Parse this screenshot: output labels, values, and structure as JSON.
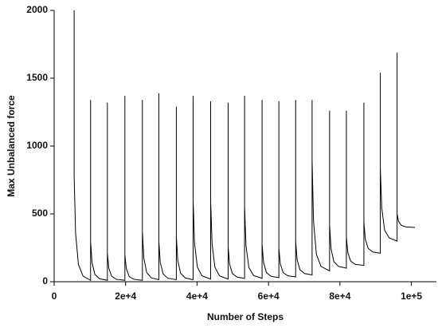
{
  "chart_data": {
    "type": "line",
    "xlabel": "Number of Steps",
    "ylabel": "Max Unbalanced force",
    "color": "#000000",
    "xlim": [
      0,
      107000
    ],
    "xticks": [
      0,
      {
        "value": 20000,
        "label": "2e+4"
      },
      {
        "value": 40000,
        "label": "4e+4"
      },
      {
        "value": 60000,
        "label": "6e+4"
      },
      {
        "value": 80000,
        "label": "8e+4"
      },
      {
        "value": 100000,
        "label": "1e+5"
      }
    ],
    "ylim": [
      0,
      2000
    ],
    "yticks": [
      0,
      500,
      1000,
      1500,
      2000
    ],
    "grid": false,
    "x": [
      5600,
      5600,
      6000,
      6800,
      8100,
      10200,
      10200,
      10200,
      10600,
      11400,
      12700,
      14900,
      14900,
      14900,
      15300,
      16100,
      17400,
      19800,
      19800,
      19800,
      20200,
      21000,
      22300,
      24700,
      24700,
      24700,
      25100,
      25900,
      27200,
      29300,
      29300,
      29300,
      29700,
      30500,
      31800,
      34200,
      34200,
      34200,
      34600,
      35400,
      36700,
      38900,
      38900,
      38900,
      39300,
      40100,
      41400,
      43800,
      43800,
      43800,
      44200,
      45000,
      46300,
      48700,
      48700,
      48700,
      49100,
      49900,
      51200,
      53300,
      53300,
      53300,
      53700,
      54500,
      55800,
      58200,
      58200,
      58200,
      58600,
      59400,
      60700,
      62900,
      62900,
      62900,
      63300,
      64100,
      65400,
      67600,
      67600,
      67600,
      68000,
      68800,
      70100,
      72200,
      72200,
      72200,
      72600,
      73400,
      74700,
      77100,
      77100,
      77100,
      77500,
      78300,
      79600,
      81800,
      81800,
      81800,
      82200,
      83000,
      84300,
      86700,
      86700,
      86700,
      87100,
      87900,
      89200,
      91300,
      91300,
      91300,
      91700,
      92500,
      93800,
      96000,
      96000,
      96000,
      96400,
      97200,
      98500,
      101000
    ],
    "values": [
      2000,
      780,
      356,
      126,
      41,
      10,
      1340,
      300,
      141,
      54,
      22,
      10,
      1320,
      210,
      100,
      40,
      18,
      10,
      1370,
      200,
      96,
      39,
      18,
      10,
      1340,
      370,
      175,
      68,
      29,
      15,
      1390,
      300,
      143,
      58,
      26,
      15,
      1290,
      330,
      157,
      62,
      28,
      15,
      1370,
      600,
      281,
      107,
      43,
      20,
      1330,
      600,
      281,
      107,
      43,
      20,
      1320,
      260,
      131,
      60,
      34,
      25,
      1370,
      560,
      266,
      105,
      46,
      25,
      1340,
      280,
      143,
      68,
      40,
      30,
      1330,
      250,
      132,
      67,
      44,
      35,
      1340,
      300,
      163,
      88,
      60,
      50,
      1340,
      900,
      449,
      203,
      113,
      80,
      1260,
      420,
      244,
      148,
      113,
      100,
      1260,
      330,
      215,
      152,
      128,
      120,
      1320,
      440,
      314,
      245,
      219,
      210,
      1540,
      840,
      543,
      381,
      322,
      300,
      1690,
      500,
      445,
      415,
      404,
      400
    ]
  }
}
